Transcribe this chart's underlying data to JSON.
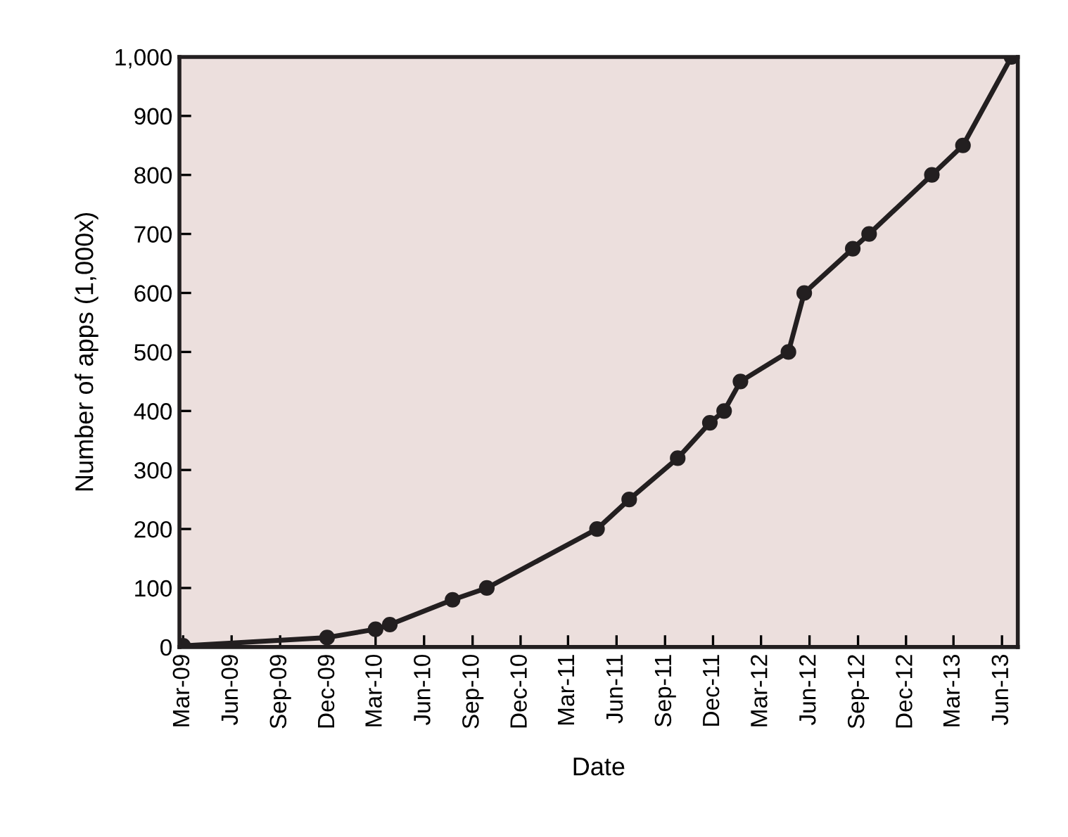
{
  "chart_data": {
    "type": "line",
    "xlabel": "Date",
    "ylabel": "Number of apps (1,000x)",
    "x": [
      "2009-03-01",
      "2009-11-29",
      "2010-03-01",
      "2010-03-28",
      "2010-07-25",
      "2010-09-28",
      "2011-04-25",
      "2011-06-25",
      "2011-09-25",
      "2011-11-25",
      "2011-12-22",
      "2012-01-22",
      "2012-04-22",
      "2012-05-22",
      "2012-08-22",
      "2012-09-22",
      "2013-01-19",
      "2013-03-19",
      "2013-06-19"
    ],
    "series": [
      {
        "color": "#231f20",
        "values": [
          2,
          16,
          30,
          38,
          80,
          100,
          200,
          250,
          320,
          380,
          400,
          450,
          500,
          600,
          675,
          700,
          800,
          850,
          1000
        ]
      }
    ],
    "xlim": [
      "2009-02-22",
      "2013-07-01"
    ],
    "xticks": [
      {
        "value": "2009-03-01",
        "label": "Mar-09"
      },
      {
        "value": "2009-06-01",
        "label": "Jun-09"
      },
      {
        "value": "2009-09-01",
        "label": "Sep-09"
      },
      {
        "value": "2009-12-01",
        "label": "Dec-09"
      },
      {
        "value": "2010-03-01",
        "label": "Mar-10"
      },
      {
        "value": "2010-06-01",
        "label": "Jun-10"
      },
      {
        "value": "2010-09-01",
        "label": "Sep-10"
      },
      {
        "value": "2010-12-01",
        "label": "Dec-10"
      },
      {
        "value": "2011-03-01",
        "label": "Mar-11"
      },
      {
        "value": "2011-06-01",
        "label": "Jun-11"
      },
      {
        "value": "2011-09-01",
        "label": "Sep-11"
      },
      {
        "value": "2011-12-01",
        "label": "Dec-11"
      },
      {
        "value": "2012-03-01",
        "label": "Mar-12"
      },
      {
        "value": "2012-06-01",
        "label": "Jun-12"
      },
      {
        "value": "2012-09-01",
        "label": "Sep-12"
      },
      {
        "value": "2012-12-01",
        "label": "Dec-12"
      },
      {
        "value": "2013-03-01",
        "label": "Mar-13"
      },
      {
        "value": "2013-06-01",
        "label": "Jun-13"
      }
    ],
    "ylim": [
      0,
      1000
    ],
    "yticks": [
      0,
      100,
      200,
      300,
      400,
      500,
      600,
      700,
      800,
      900,
      {
        "value": 1000,
        "label": "1,000"
      }
    ],
    "grid": false,
    "marker": "circle",
    "line_style": "solid"
  }
}
